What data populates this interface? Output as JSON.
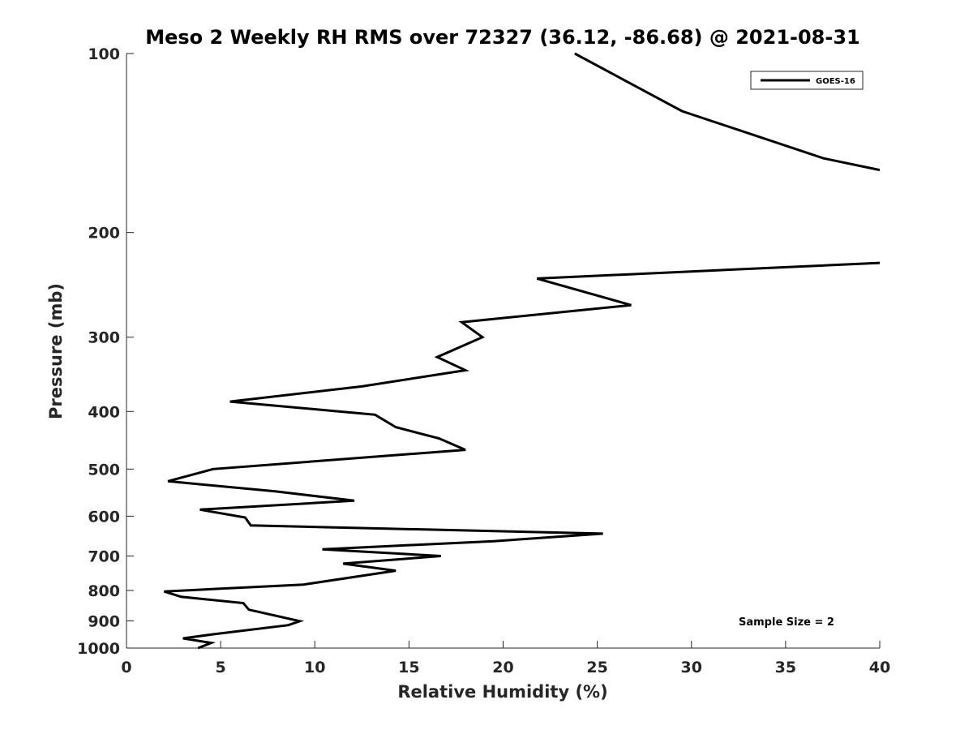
{
  "chart_data": {
    "type": "line",
    "title": "Meso 2 Weekly RH RMS over 72327 (36.12, -86.68) @ 2021-08-31",
    "xlabel": "Relative Humidity (%)",
    "ylabel": "Pressure (mb)",
    "xlim": [
      0,
      40
    ],
    "ylim": [
      100,
      1000
    ],
    "yscale": "log",
    "y_reversed": true,
    "xticks": [
      0,
      5,
      10,
      15,
      20,
      25,
      30,
      35,
      40
    ],
    "yticks": [
      100,
      200,
      300,
      400,
      500,
      600,
      700,
      800,
      900,
      1000
    ],
    "grid": false,
    "legend": {
      "position": "top-right",
      "entries": [
        "GOES-16"
      ]
    },
    "annotation": "Sample Size = 2",
    "series": [
      {
        "name": "GOES-16",
        "color": "#000000",
        "segments": [
          [
            [
              23.8,
              100
            ],
            [
              29.5,
              125
            ],
            [
              37.0,
              150
            ],
            [
              40.0,
              157
            ]
          ],
          [
            [
              40.0,
              225
            ],
            [
              21.8,
              239
            ],
            [
              26.8,
              265
            ],
            [
              17.8,
              283
            ],
            [
              18.9,
              300
            ],
            [
              16.5,
              324
            ],
            [
              18.0,
              341
            ],
            [
              12.5,
              363
            ],
            [
              5.5,
              385
            ],
            [
              13.2,
              405
            ],
            [
              14.3,
              425
            ],
            [
              16.6,
              444
            ],
            [
              18.0,
              464
            ],
            [
              4.6,
              500
            ],
            [
              2.2,
              524
            ],
            [
              7.9,
              545
            ],
            [
              12.1,
              565
            ],
            [
              3.9,
              585
            ],
            [
              6.3,
              603
            ],
            [
              6.6,
              622
            ],
            [
              25.3,
              642
            ],
            [
              19.5,
              661
            ],
            [
              10.4,
              682
            ],
            [
              16.7,
              700
            ],
            [
              11.5,
              721
            ],
            [
              14.3,
              741
            ],
            [
              9.4,
              782
            ],
            [
              2.0,
              803
            ],
            [
              2.9,
              820
            ],
            [
              6.2,
              840
            ],
            [
              6.5,
              862
            ],
            [
              9.2,
              901
            ],
            [
              8.6,
              915
            ],
            [
              4.6,
              948
            ],
            [
              3.0,
              963
            ],
            [
              4.5,
              980
            ],
            [
              3.8,
              1000
            ]
          ]
        ]
      }
    ]
  }
}
